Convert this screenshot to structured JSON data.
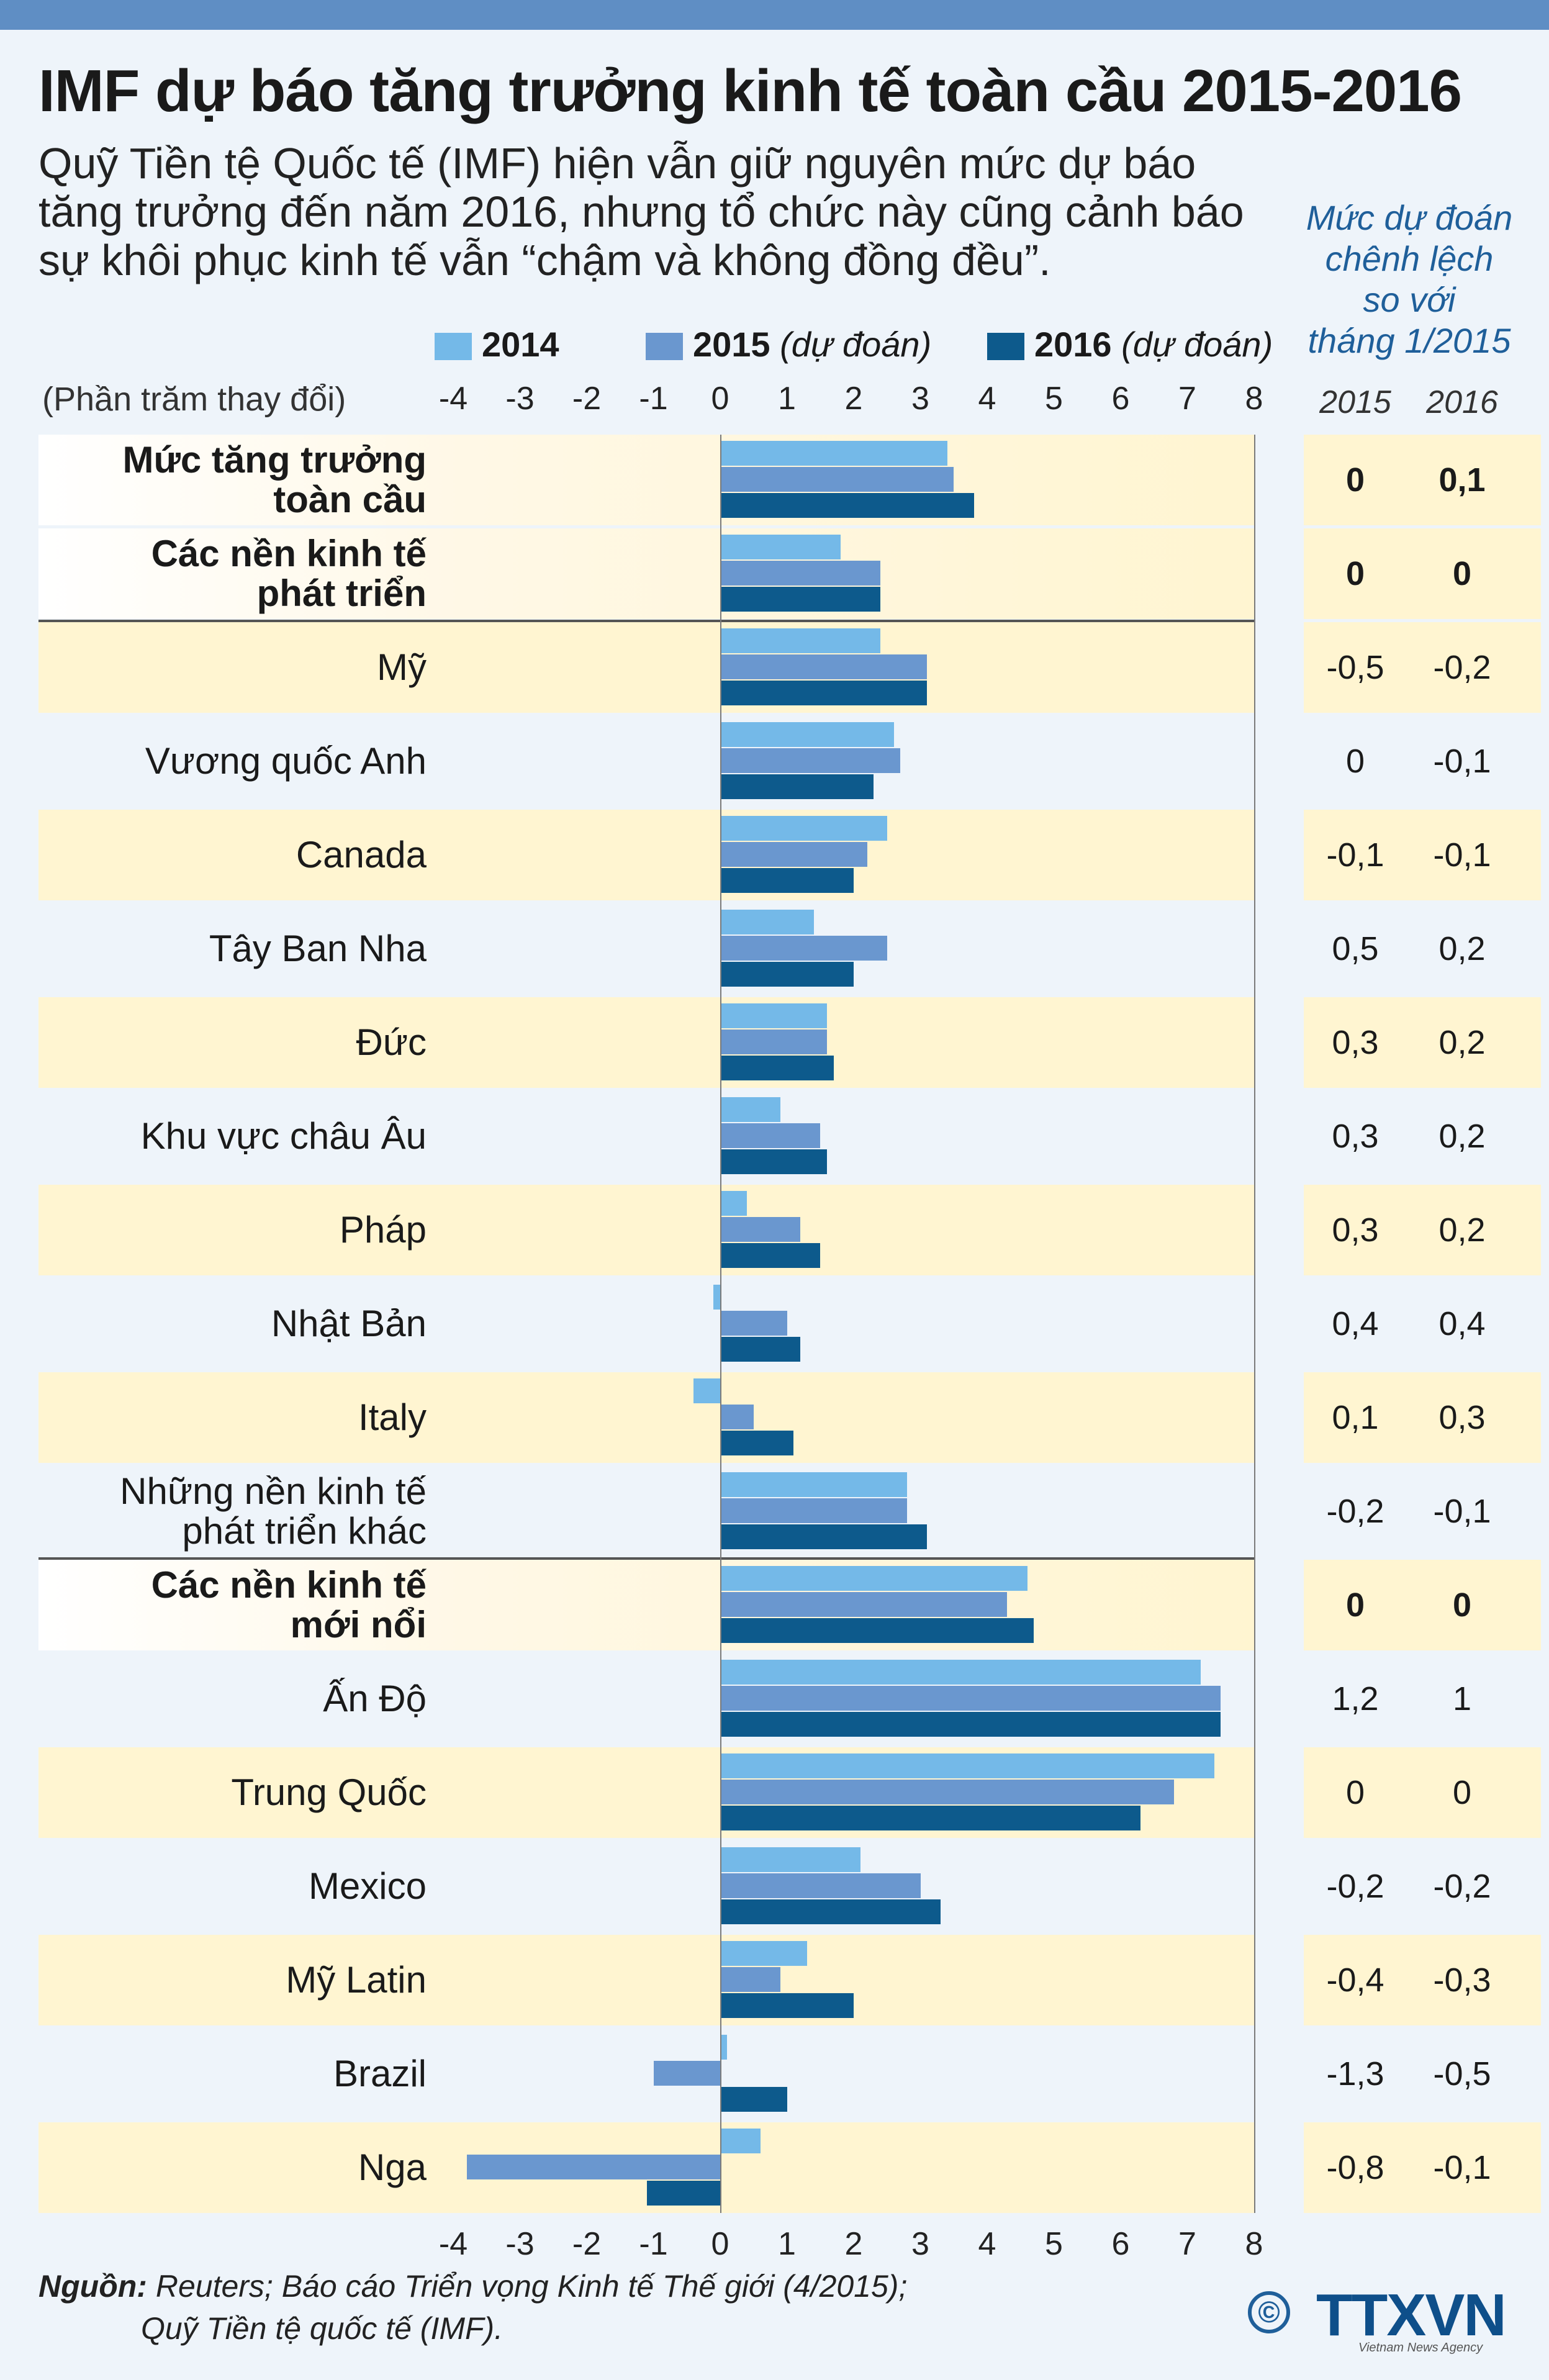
{
  "title": "IMF dự báo tăng trưởng kinh tế toàn cầu 2015-2016",
  "intro": [
    "Quỹ Tiền tệ Quốc tế (IMF) hiện vẫn giữ nguyên mức dự báo",
    "tăng trưởng đến năm 2016, nhưng tổ chức này cũng cảnh báo",
    "sự khôi phục kinh tế vẫn “chậm và không đồng đều”."
  ],
  "diff_header": [
    "Mức dự đoán",
    "chênh lệch",
    "so với",
    "tháng 1/2015"
  ],
  "diff_years": [
    "2015",
    "2016"
  ],
  "unit_label": "(Phần trăm thay đổi)",
  "legend": [
    {
      "year": "2014",
      "note": "",
      "color": "#74b9e8"
    },
    {
      "year": "2015",
      "note": "(dự đoán)",
      "color": "#6a97cf"
    },
    {
      "year": "2016",
      "note": "(dự đoán)",
      "color": "#0d5a8c"
    }
  ],
  "source": {
    "label": "Nguồn:",
    "line1": "Reuters; Báo cáo Triển vọng Kinh tế Thế giới (4/2015);",
    "line2": "Quỹ Tiền tệ quốc tế (IMF)."
  },
  "logo": {
    "text": "TTXVN",
    "copyright": "©",
    "sub": "Vietnam News Agency"
  },
  "chart_data": {
    "type": "bar",
    "orientation": "horizontal",
    "xlim": [
      -4,
      8
    ],
    "ticks": [
      "-4",
      "-3",
      "-2",
      "-1",
      "0",
      "1",
      "2",
      "3",
      "4",
      "5",
      "6",
      "7",
      "8"
    ],
    "series": [
      {
        "name": "2014"
      },
      {
        "name": "2015 (dự đoán)"
      },
      {
        "name": "2016 (dự đoán)"
      }
    ],
    "rows": [
      {
        "label": "Mức tăng trưởng toàn cầu",
        "bold": true,
        "values": [
          3.4,
          3.5,
          3.8
        ],
        "diff": [
          "0",
          "0,1"
        ]
      },
      {
        "label": "Các nền kinh tế phát triển",
        "bold": true,
        "values": [
          1.8,
          2.4,
          2.4
        ],
        "diff": [
          "0",
          "0"
        ]
      },
      {
        "label": "Mỹ",
        "bold": false,
        "values": [
          2.4,
          3.1,
          3.1
        ],
        "diff": [
          "-0,5",
          "-0,2"
        ]
      },
      {
        "label": "Vương quốc Anh",
        "bold": false,
        "values": [
          2.6,
          2.7,
          2.3
        ],
        "diff": [
          "0",
          "-0,1"
        ]
      },
      {
        "label": "Canada",
        "bold": false,
        "values": [
          2.5,
          2.2,
          2.0
        ],
        "diff": [
          "-0,1",
          "-0,1"
        ]
      },
      {
        "label": "Tây Ban Nha",
        "bold": false,
        "values": [
          1.4,
          2.5,
          2.0
        ],
        "diff": [
          "0,5",
          "0,2"
        ]
      },
      {
        "label": "Đức",
        "bold": false,
        "values": [
          1.6,
          1.6,
          1.7
        ],
        "diff": [
          "0,3",
          "0,2"
        ]
      },
      {
        "label": "Khu vực châu Âu",
        "bold": false,
        "values": [
          0.9,
          1.5,
          1.6
        ],
        "diff": [
          "0,3",
          "0,2"
        ]
      },
      {
        "label": "Pháp",
        "bold": false,
        "values": [
          0.4,
          1.2,
          1.5
        ],
        "diff": [
          "0,3",
          "0,2"
        ]
      },
      {
        "label": "Nhật Bản",
        "bold": false,
        "values": [
          -0.1,
          1.0,
          1.2
        ],
        "diff": [
          "0,4",
          "0,4"
        ]
      },
      {
        "label": "Italy",
        "bold": false,
        "values": [
          -0.4,
          0.5,
          1.1
        ],
        "diff": [
          "0,1",
          "0,3"
        ]
      },
      {
        "label": "Những nền kinh tế phát triển khác",
        "bold": false,
        "values": [
          2.8,
          2.8,
          3.1
        ],
        "diff": [
          "-0,2",
          "-0,1"
        ]
      },
      {
        "label": "Các nền kinh tế mới nổi",
        "bold": true,
        "values": [
          4.6,
          4.3,
          4.7
        ],
        "diff": [
          "0",
          "0"
        ]
      },
      {
        "label": "Ấn Độ",
        "bold": false,
        "values": [
          7.2,
          7.5,
          7.5
        ],
        "diff": [
          "1,2",
          "1"
        ]
      },
      {
        "label": "Trung Quốc",
        "bold": false,
        "values": [
          7.4,
          6.8,
          6.3
        ],
        "diff": [
          "0",
          "0"
        ]
      },
      {
        "label": "Mexico",
        "bold": false,
        "values": [
          2.1,
          3.0,
          3.3
        ],
        "diff": [
          "-0,2",
          "-0,2"
        ]
      },
      {
        "label": "Mỹ Latin",
        "bold": false,
        "values": [
          1.3,
          0.9,
          2.0
        ],
        "diff": [
          "-0,4",
          "-0,3"
        ]
      },
      {
        "label": "Brazil",
        "bold": false,
        "values": [
          0.1,
          -1.0,
          1.0
        ],
        "diff": [
          "-1,3",
          "-0,5"
        ]
      },
      {
        "label": "Nga",
        "bold": false,
        "values": [
          0.6,
          -3.8,
          -1.1
        ],
        "diff": [
          "-0,8",
          "-0,1"
        ]
      }
    ]
  }
}
